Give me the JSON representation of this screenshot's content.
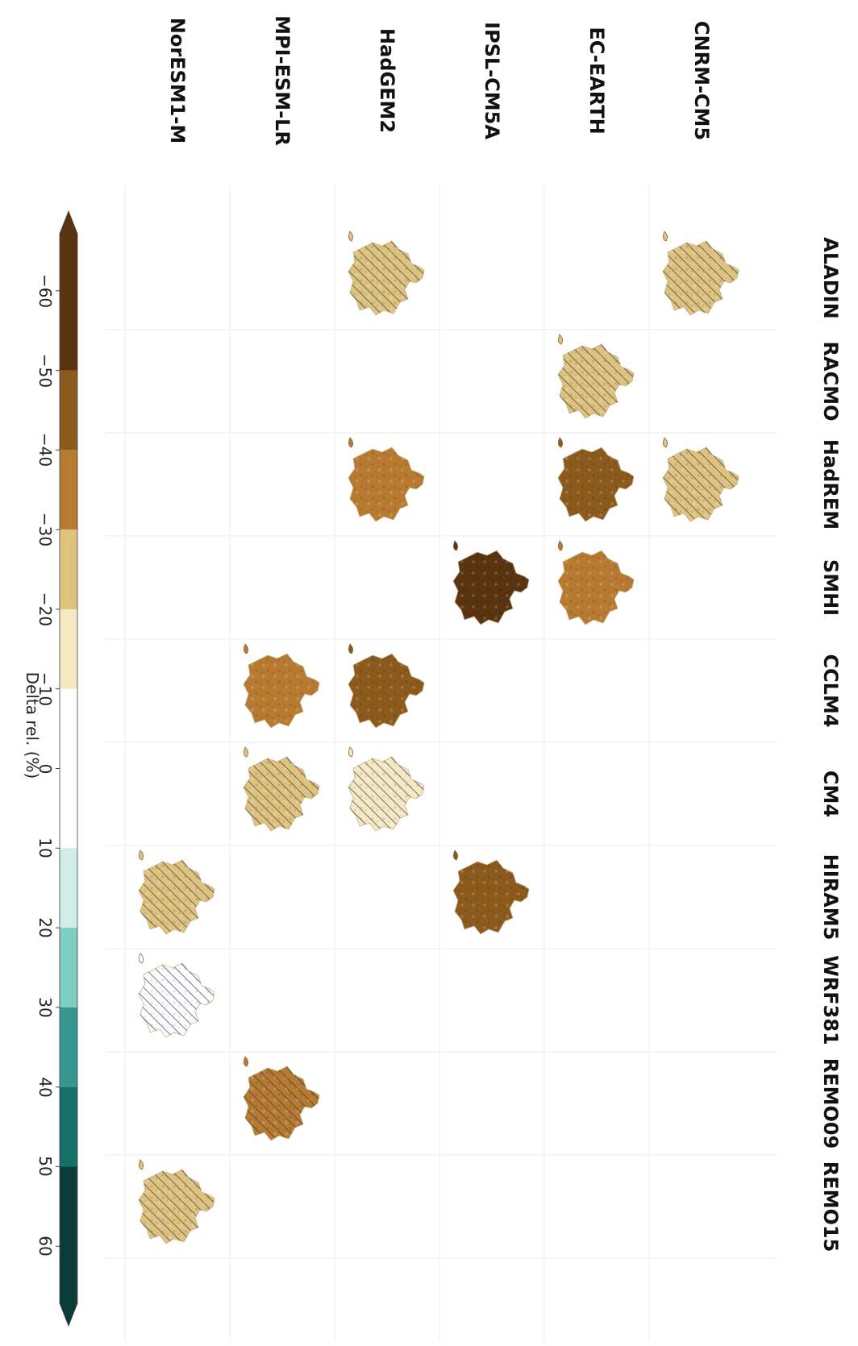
{
  "chart_data": {
    "type": "heatmap",
    "description_rows": "GCM",
    "gcms": [
      "CNRM-CM5",
      "EC-EARTH",
      "IPSL-CM5A",
      "HadGEM2",
      "MPI-ESM-LR",
      "NorESM1-M"
    ],
    "rcms": [
      "ALADIN",
      "RACMO",
      "HadREM",
      "SMHI",
      "CCLM4",
      "CM4",
      "HIRAM5",
      "WRF381",
      "REMO09",
      "REMO15"
    ],
    "cells": [
      {
        "gcm": "CNRM-CM5",
        "rcm": "ALADIN",
        "delta": -25,
        "hatched": true
      },
      {
        "gcm": "CNRM-CM5",
        "rcm": "HadREM",
        "delta": -25,
        "hatched": true
      },
      {
        "gcm": "EC-EARTH",
        "rcm": "RACMO",
        "delta": -28,
        "hatched": true
      },
      {
        "gcm": "EC-EARTH",
        "rcm": "HadREM",
        "delta": -42,
        "hatched": false
      },
      {
        "gcm": "EC-EARTH",
        "rcm": "SMHI",
        "delta": -40,
        "hatched": false
      },
      {
        "gcm": "IPSL-CM5A",
        "rcm": "SMHI",
        "delta": -52,
        "hatched": false
      },
      {
        "gcm": "IPSL-CM5A",
        "rcm": "HIRAM5",
        "delta": -42,
        "hatched": false
      },
      {
        "gcm": "HadGEM2",
        "rcm": "ALADIN",
        "delta": -22,
        "hatched": true
      },
      {
        "gcm": "HadGEM2",
        "rcm": "HadREM",
        "delta": -35,
        "hatched": false
      },
      {
        "gcm": "HadGEM2",
        "rcm": "CCLM4",
        "delta": -45,
        "hatched": false
      },
      {
        "gcm": "HadGEM2",
        "rcm": "CM4",
        "delta": -12,
        "hatched": true
      },
      {
        "gcm": "MPI-ESM-LR",
        "rcm": "CCLM4",
        "delta": -40,
        "hatched": false
      },
      {
        "gcm": "MPI-ESM-LR",
        "rcm": "CM4",
        "delta": -22,
        "hatched": true
      },
      {
        "gcm": "MPI-ESM-LR",
        "rcm": "REMO09",
        "delta": -38,
        "hatched": true
      },
      {
        "gcm": "NorESM1-M",
        "rcm": "HIRAM5",
        "delta": -28,
        "hatched": true
      },
      {
        "gcm": "NorESM1-M",
        "rcm": "WRF381",
        "delta": 8,
        "hatched": true
      },
      {
        "gcm": "NorESM1-M",
        "rcm": "REMO15",
        "delta": -22,
        "hatched": true
      }
    ],
    "colorbar": {
      "title": "Delta rel. (%)",
      "ticks": [
        -60,
        -50,
        -40,
        -30,
        -20,
        -10,
        0,
        10,
        20,
        30,
        40,
        50,
        60
      ],
      "tick_labels": [
        "−60",
        "−50",
        "−40",
        "−30",
        "−20",
        "−10",
        "0",
        "10",
        "20",
        "30",
        "40",
        "50",
        "60"
      ],
      "range": [
        -70,
        70
      ],
      "bins": [
        {
          "from": -70,
          "to": -50,
          "color": "#5a3310"
        },
        {
          "from": -50,
          "to": -40,
          "color": "#8b5a1c"
        },
        {
          "from": -40,
          "to": -30,
          "color": "#b87a30"
        },
        {
          "from": -30,
          "to": -20,
          "color": "#dfc27d"
        },
        {
          "from": -20,
          "to": -10,
          "color": "#f6e8c3"
        },
        {
          "from": -10,
          "to": 10,
          "color": "#ffffff"
        },
        {
          "from": 10,
          "to": 20,
          "color": "#d2ece8"
        },
        {
          "from": 20,
          "to": 30,
          "color": "#80cdc1"
        },
        {
          "from": 30,
          "to": 40,
          "color": "#35978f"
        },
        {
          "from": 40,
          "to": 50,
          "color": "#16706a"
        },
        {
          "from": 50,
          "to": 70,
          "color": "#0b3d38"
        }
      ]
    }
  }
}
